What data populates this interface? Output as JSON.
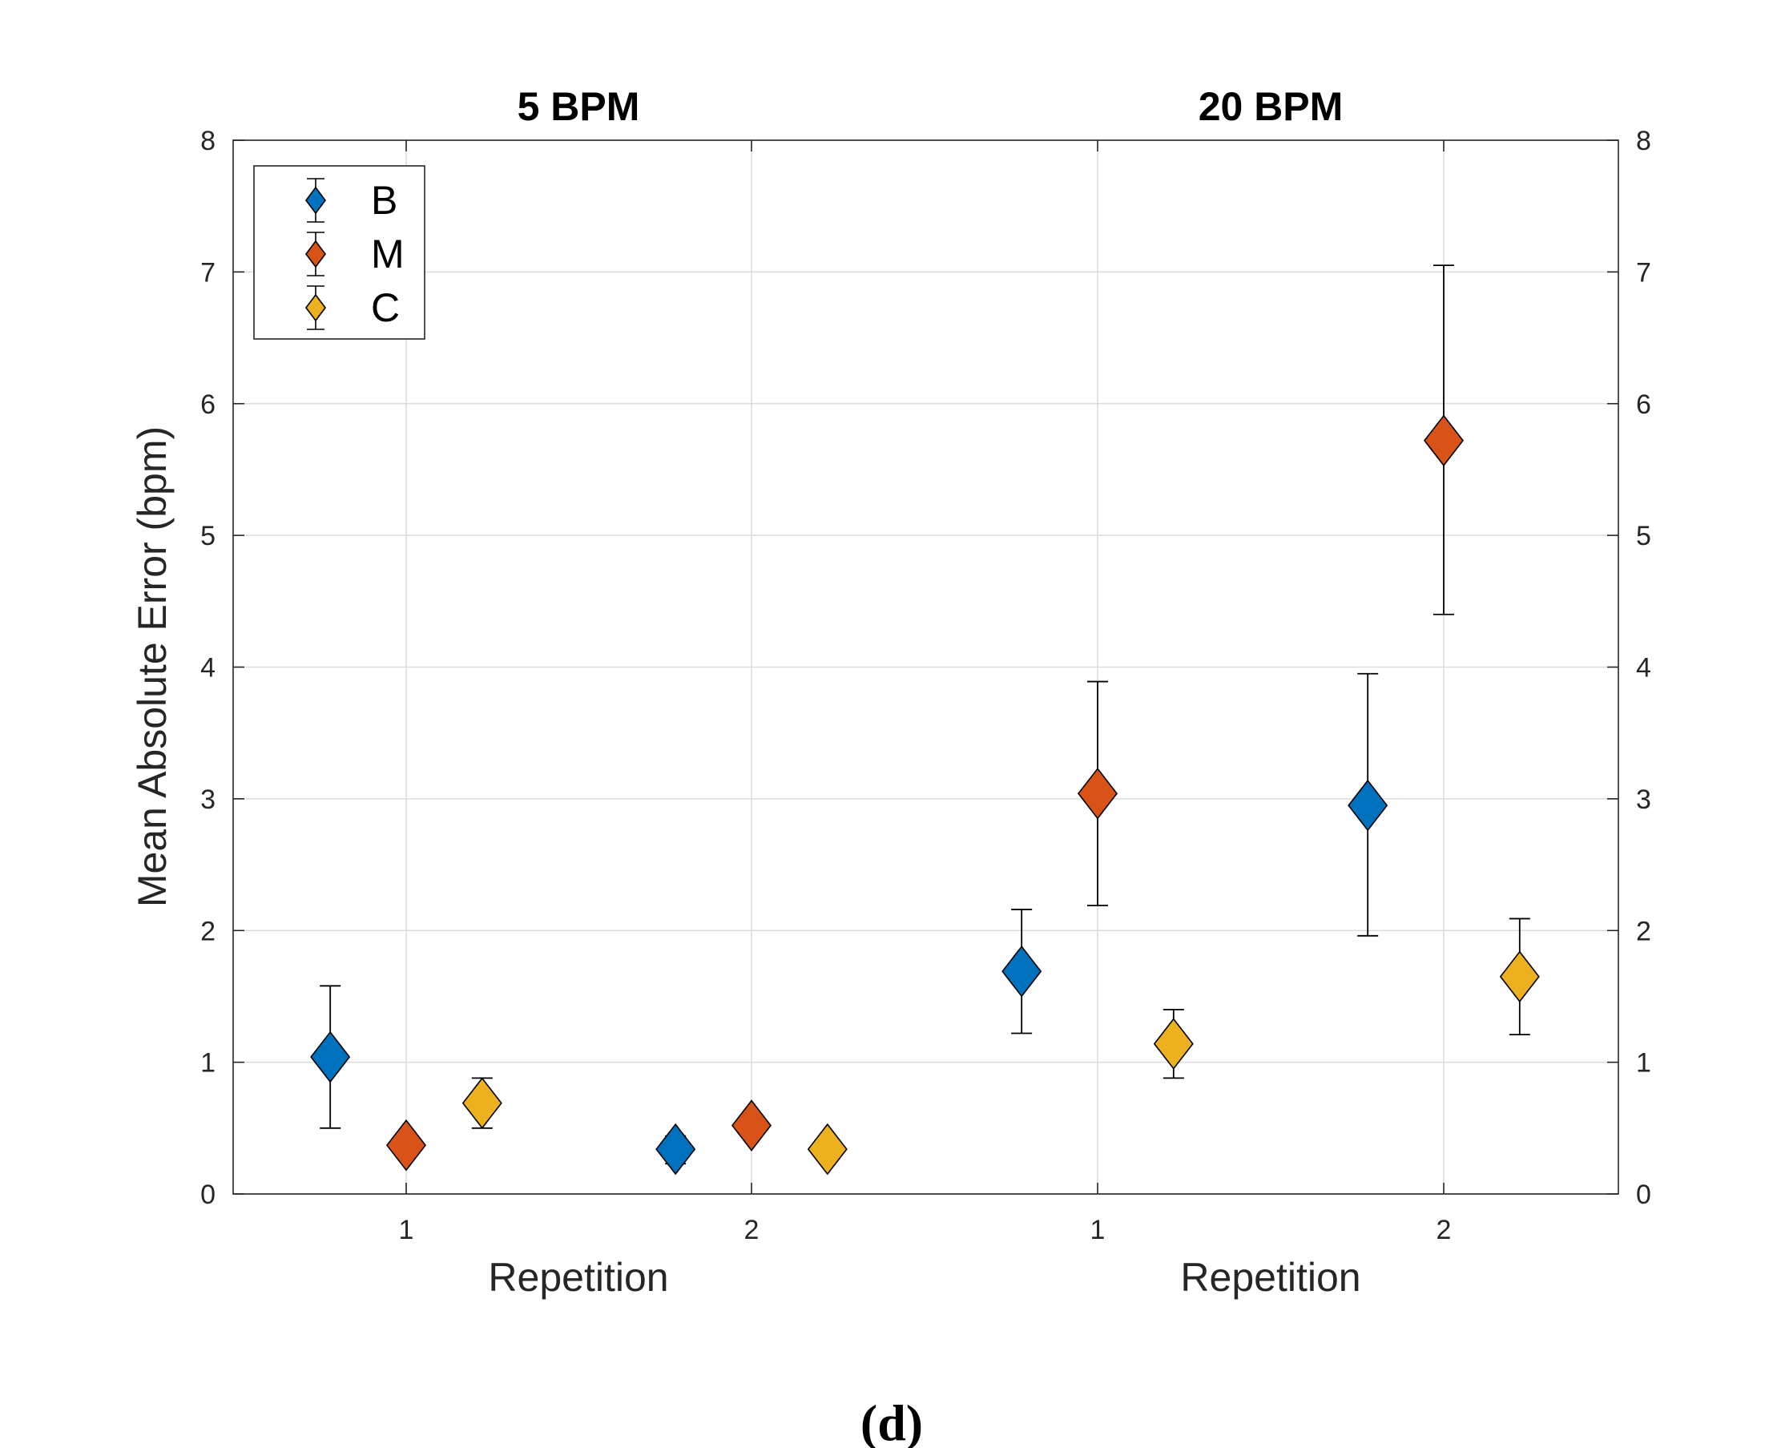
{
  "figure_label": "(d)",
  "chart_data": {
    "type": "scatter",
    "ylabel": "Mean Absolute Error (bpm)",
    "ylim": [
      0,
      8
    ],
    "yticks": [
      "0",
      "1",
      "2",
      "3",
      "4",
      "5",
      "6",
      "7",
      "8"
    ],
    "grid": true,
    "right_axis_ticks": true,
    "legend_position": "top-left",
    "error_bars": true,
    "marker": "diamond",
    "groups": [
      {
        "title": "5 BPM",
        "xlabel": "Repetition",
        "categories": [
          "1",
          "2"
        ],
        "series": [
          {
            "name": "B",
            "color": "#0072BD",
            "offset": -0.22,
            "values": [
              1.04,
              0.34
            ],
            "lower": [
              0.5,
              0.23
            ],
            "upper": [
              1.58,
              0.44
            ]
          },
          {
            "name": "M",
            "color": "#D95319",
            "offset": 0,
            "values": [
              0.37,
              0.52
            ],
            "lower": [
              0.3,
              0.5
            ],
            "upper": [
              0.44,
              0.55
            ]
          },
          {
            "name": "C",
            "color": "#EDB120",
            "offset": 0.22,
            "values": [
              0.69,
              0.34
            ],
            "lower": [
              0.5,
              0.27
            ],
            "upper": [
              0.88,
              0.41
            ]
          }
        ]
      },
      {
        "title": "20 BPM",
        "xlabel": "Repetition",
        "categories": [
          "1",
          "2"
        ],
        "series": [
          {
            "name": "B",
            "color": "#0072BD",
            "offset": -0.22,
            "values": [
              1.69,
              2.95
            ],
            "lower": [
              1.22,
              1.96
            ],
            "upper": [
              2.16,
              3.95
            ]
          },
          {
            "name": "M",
            "color": "#D95319",
            "offset": 0,
            "values": [
              3.04,
              5.72
            ],
            "lower": [
              2.19,
              4.4
            ],
            "upper": [
              3.89,
              7.05
            ]
          },
          {
            "name": "C",
            "color": "#EDB120",
            "offset": 0.22,
            "values": [
              1.14,
              1.65
            ],
            "lower": [
              0.88,
              1.21
            ],
            "upper": [
              1.4,
              2.09
            ]
          }
        ]
      }
    ]
  }
}
